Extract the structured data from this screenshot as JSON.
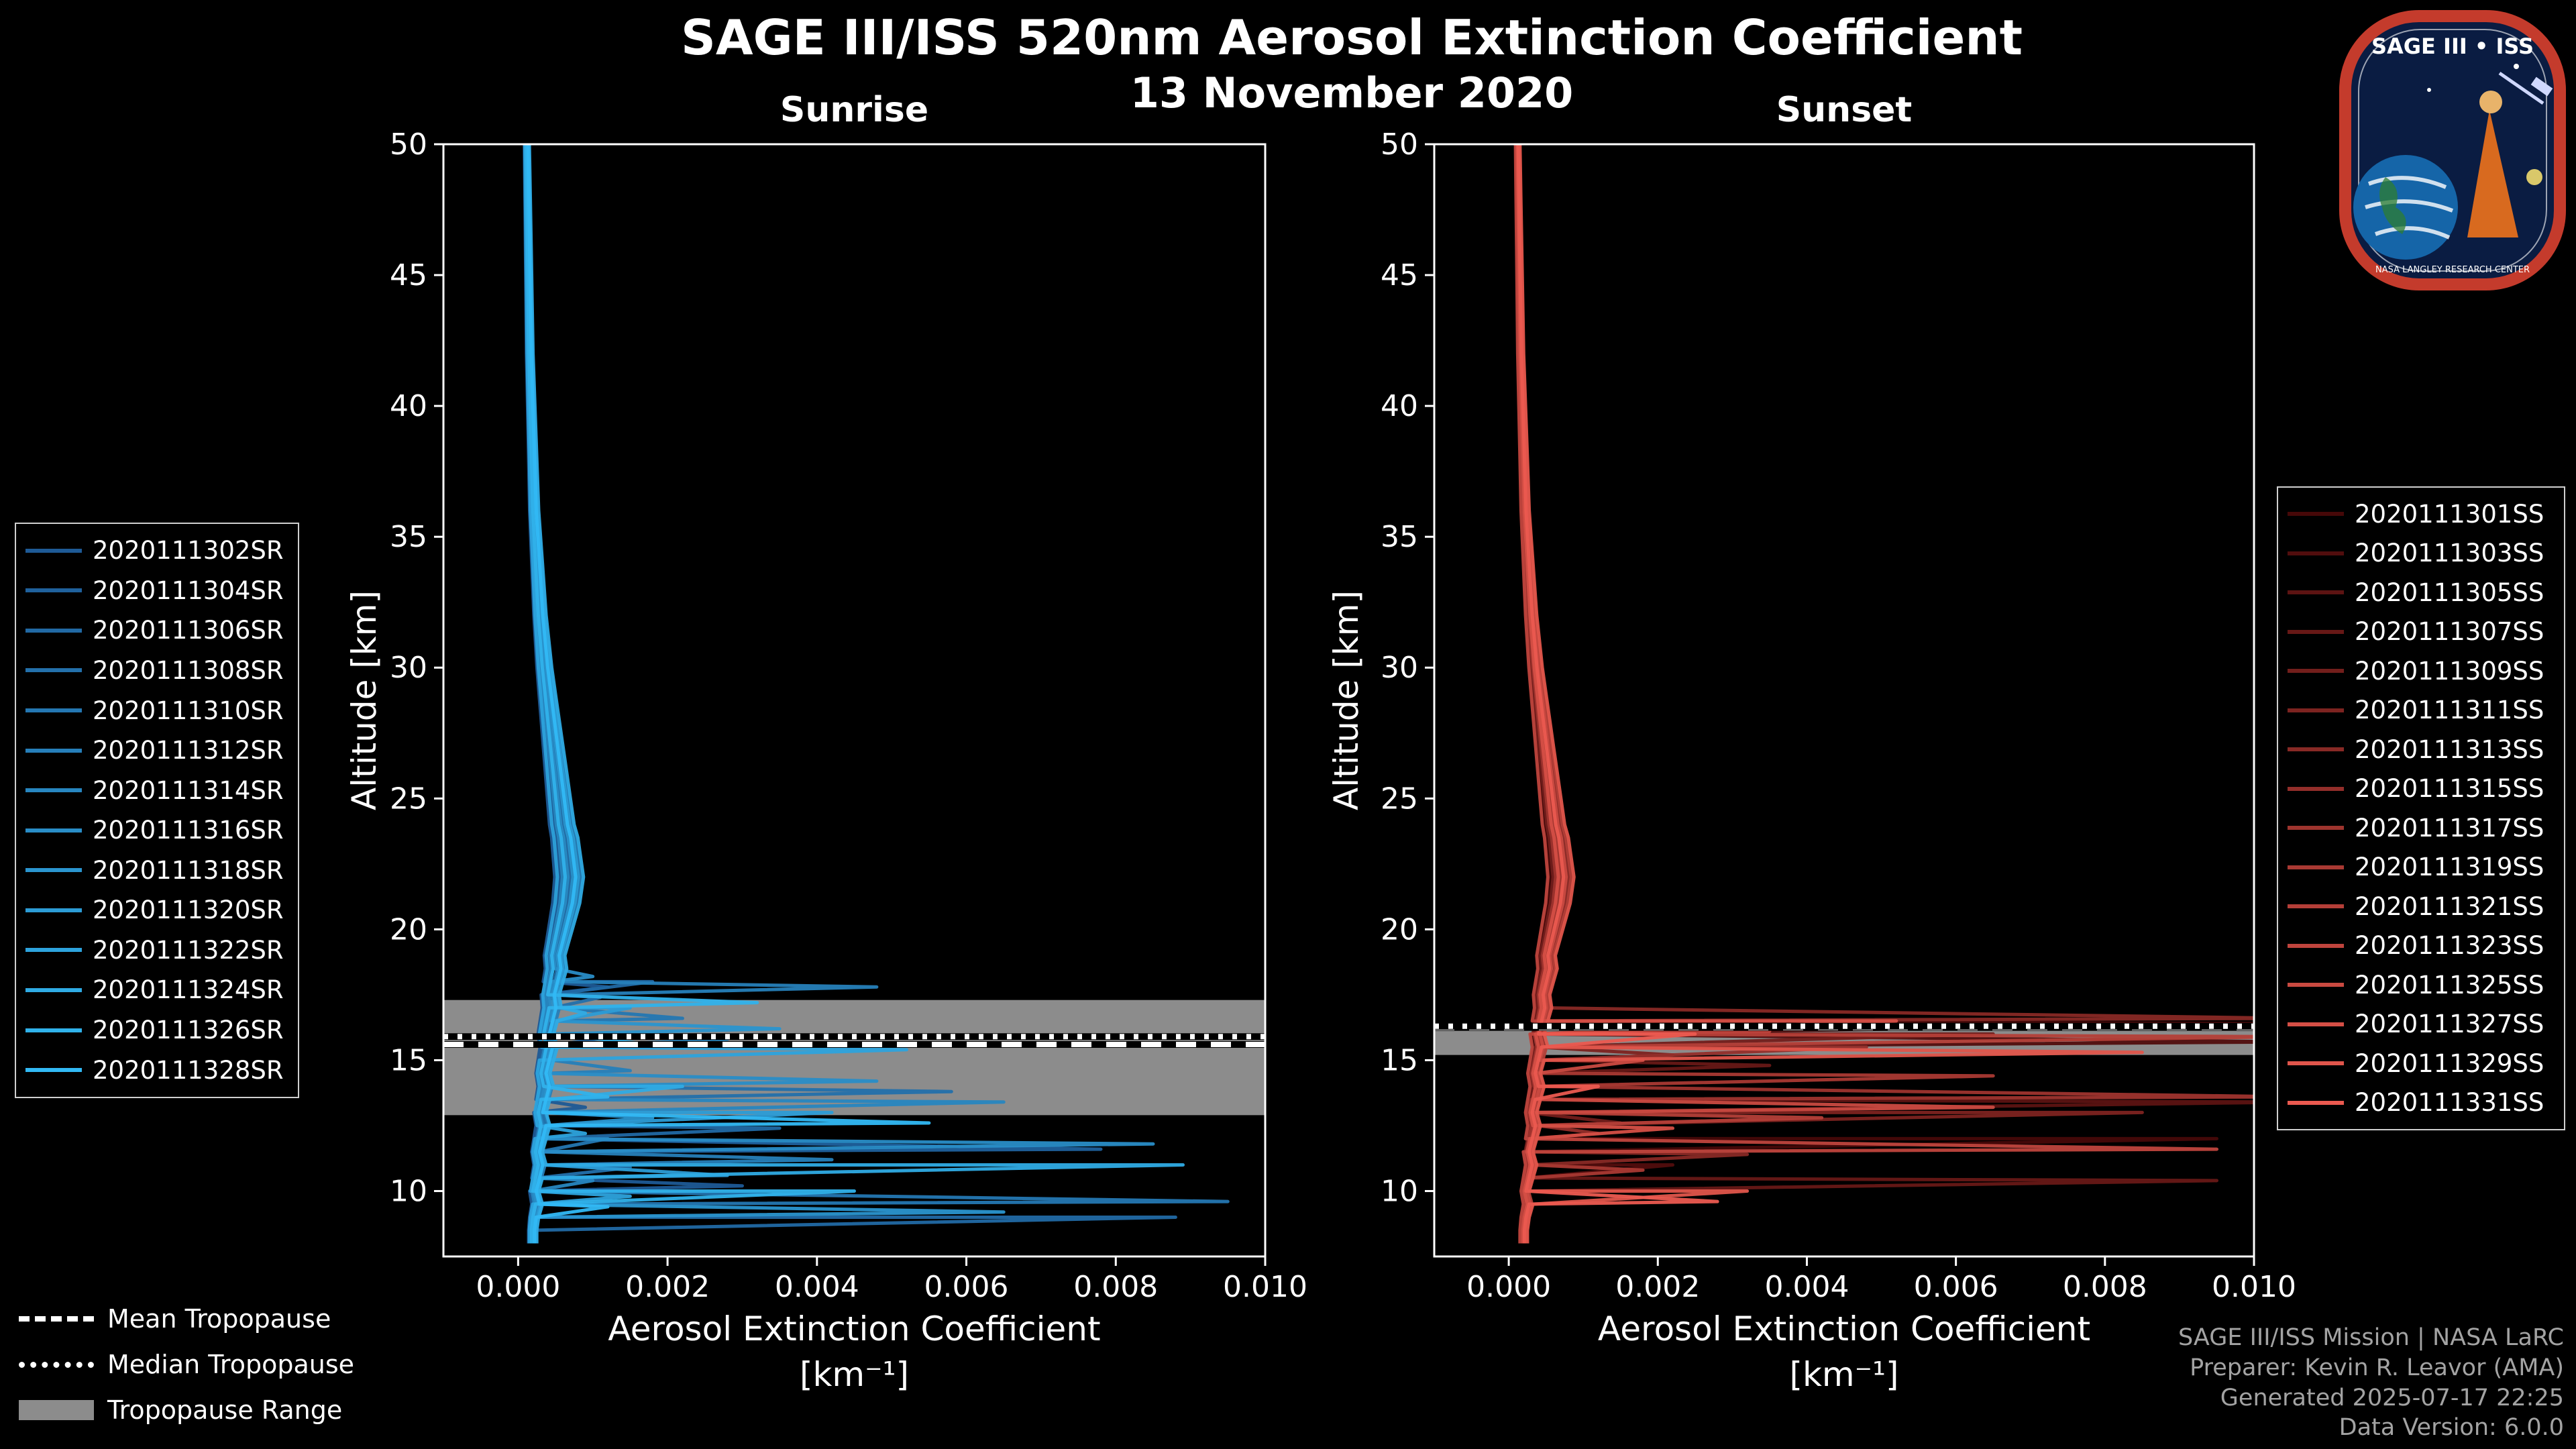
{
  "header": {
    "title": "SAGE III/ISS 520nm Aerosol Extinction Coefficient",
    "date": "13 November 2020"
  },
  "logo": {
    "title": "SAGE III • ISS",
    "ring_text": "NASA LANGLEY RESEARCH CENTER"
  },
  "tropopause_legend": {
    "mean": "Mean Tropopause",
    "median": "Median Tropopause",
    "range": "Tropopause Range"
  },
  "footer": {
    "line1": "SAGE III/ISS Mission | NASA LaRC",
    "line2": "Preparer: Kevin R. Leavor (AMA)",
    "line3": "Generated 2025-07-17 22:25",
    "line4": "Data Version: 6.0.0"
  },
  "chart_data": {
    "type": "line",
    "x_axis": {
      "label": "Aerosol Extinction Coefficient",
      "units": "[km⁻¹]",
      "ticks": [
        0.0,
        0.002,
        0.004,
        0.006,
        0.008,
        0.01
      ],
      "lim": [
        -0.001,
        0.01
      ]
    },
    "y_axis": {
      "label": "Altitude [km]",
      "ticks": [
        10,
        15,
        20,
        25,
        30,
        35,
        40,
        45,
        50
      ],
      "lim": [
        7.5,
        50
      ]
    },
    "colors": {
      "band": "#8c8c8c",
      "tropopause_line": "#ffffff",
      "axis": "#ffffff"
    },
    "base_profile": [
      [
        50,
        0.00012
      ],
      [
        48,
        0.00013
      ],
      [
        46,
        0.00014
      ],
      [
        44,
        0.00015
      ],
      [
        42,
        0.00016
      ],
      [
        40,
        0.00018
      ],
      [
        38,
        0.0002
      ],
      [
        36,
        0.00022
      ],
      [
        34,
        0.00026
      ],
      [
        32,
        0.0003
      ],
      [
        30,
        0.00036
      ],
      [
        29,
        0.0004
      ],
      [
        28,
        0.00044
      ],
      [
        27,
        0.00048
      ],
      [
        26,
        0.00052
      ],
      [
        25,
        0.00056
      ],
      [
        24,
        0.0006
      ],
      [
        23.5,
        0.00064
      ],
      [
        23,
        0.00066
      ],
      [
        22.5,
        0.00068
      ],
      [
        22,
        0.0007
      ],
      [
        21.5,
        0.00068
      ],
      [
        21,
        0.00066
      ],
      [
        20.5,
        0.00062
      ],
      [
        20,
        0.00058
      ],
      [
        19.5,
        0.00054
      ],
      [
        19,
        0.0005
      ],
      [
        18.5,
        0.00052
      ],
      [
        18,
        0.00048
      ],
      [
        17.5,
        0.00044
      ],
      [
        17,
        0.00046
      ],
      [
        16.5,
        0.00042
      ],
      [
        16,
        0.00038
      ],
      [
        15.5,
        0.00042
      ],
      [
        15,
        0.00038
      ],
      [
        14.5,
        0.00034
      ],
      [
        14,
        0.00038
      ],
      [
        13.5,
        0.00034
      ],
      [
        13,
        0.0003
      ],
      [
        12.5,
        0.00034
      ],
      [
        12,
        0.0003
      ],
      [
        11.5,
        0.00026
      ],
      [
        11,
        0.0003
      ],
      [
        10.5,
        0.00026
      ],
      [
        10,
        0.00022
      ],
      [
        9.5,
        0.00026
      ],
      [
        9,
        0.00022
      ],
      [
        8.5,
        0.0002
      ],
      [
        8,
        0.0002
      ]
    ],
    "panels": [
      {
        "key": "sunrise",
        "title": "Sunrise",
        "tropopause": {
          "mean": 15.6,
          "median": 15.9,
          "range": [
            12.9,
            17.3
          ]
        },
        "series": [
          {
            "name": "2020111302SR",
            "color": "#1e5a96",
            "scale": 0.7,
            "spikes": [
              [
                17.8,
                0.0012
              ],
              [
                13.2,
                0.0009
              ],
              [
                10.2,
                0.003
              ]
            ]
          },
          {
            "name": "2020111304SR",
            "color": "#1f619d",
            "scale": 0.8,
            "spikes": [
              [
                16.0,
                0.0015
              ],
              [
                11.6,
                0.0078
              ]
            ]
          },
          {
            "name": "2020111306SR",
            "color": "#2169a4",
            "scale": 0.9,
            "spikes": [
              [
                18.0,
                0.0018
              ],
              [
                12.4,
                0.0035
              ],
              [
                9.0,
                0.0088
              ]
            ]
          },
          {
            "name": "2020111308SR",
            "color": "#2370ab",
            "scale": 1.0,
            "spikes": [
              [
                17.4,
                0.0011
              ],
              [
                13.8,
                0.0058
              ],
              [
                10.9,
                0.0015
              ]
            ]
          },
          {
            "name": "2020111310SR",
            "color": "#2477b2",
            "scale": 1.1,
            "spikes": [
              [
                16.6,
                0.0022
              ],
              [
                12.0,
                0.0012
              ],
              [
                9.6,
                0.0095
              ]
            ]
          },
          {
            "name": "2020111312SR",
            "color": "#267fb9",
            "scale": 1.2,
            "spikes": [
              [
                17.8,
                0.0048
              ],
              [
                14.6,
                0.0015
              ],
              [
                11.2,
                0.0042
              ]
            ]
          },
          {
            "name": "2020111314SR",
            "color": "#2786c0",
            "scale": 0.85,
            "spikes": [
              [
                15.8,
                0.0028
              ],
              [
                13.4,
                0.0065
              ],
              [
                10.4,
                0.001
              ]
            ]
          },
          {
            "name": "2020111316SR",
            "color": "#298dc7",
            "scale": 0.95,
            "spikes": [
              [
                18.2,
                0.001
              ],
              [
                14.2,
                0.0048
              ],
              [
                11.8,
                0.0085
              ]
            ]
          },
          {
            "name": "2020111318SR",
            "color": "#2a95cf",
            "scale": 1.05,
            "spikes": [
              [
                16.2,
                0.0035
              ],
              [
                12.8,
                0.0018
              ],
              [
                9.2,
                0.0065
              ]
            ]
          },
          {
            "name": "2020111320SR",
            "color": "#2c9cd6",
            "scale": 1.15,
            "spikes": [
              [
                17.0,
                0.0015
              ],
              [
                13.0,
                0.0042
              ],
              [
                10.6,
                0.0028
              ]
            ]
          },
          {
            "name": "2020111322SR",
            "color": "#2da3dd",
            "scale": 0.75,
            "spikes": [
              [
                15.4,
                0.0052
              ],
              [
                12.2,
                0.0009
              ],
              [
                9.8,
                0.0015
              ]
            ]
          },
          {
            "name": "2020111324SR",
            "color": "#2fabe4",
            "scale": 1.25,
            "spikes": [
              [
                16.8,
                0.0009
              ],
              [
                14.0,
                0.0022
              ],
              [
                11.0,
                0.0089
              ]
            ]
          },
          {
            "name": "2020111326SR",
            "color": "#30b2eb",
            "scale": 0.9,
            "spikes": [
              [
                17.2,
                0.0032
              ],
              [
                13.6,
                0.0012
              ],
              [
                10.0,
                0.0045
              ]
            ]
          },
          {
            "name": "2020111328SR",
            "color": "#32b9f5",
            "scale": 1.1,
            "spikes": [
              [
                15.6,
                0.0018
              ],
              [
                12.6,
                0.0055
              ],
              [
                9.4,
                0.0012
              ]
            ]
          }
        ]
      },
      {
        "key": "sunset",
        "title": "Sunset",
        "tropopause": {
          "mean": 16.25,
          "median": 16.3,
          "range": [
            15.2,
            16.4
          ]
        },
        "series": [
          {
            "name": "2020111301SS",
            "color": "#460808",
            "scale": 0.8,
            "spikes": [
              [
                16.4,
                0.0105
              ],
              [
                12.0,
                0.0095
              ]
            ]
          },
          {
            "name": "2020111303SS",
            "color": "#510d0d",
            "scale": 0.9,
            "spikes": [
              [
                15.7,
                0.0105
              ],
              [
                11.0,
                0.0022
              ]
            ]
          },
          {
            "name": "2020111305SS",
            "color": "#5c1312",
            "scale": 1.0,
            "spikes": [
              [
                16.2,
                0.0045
              ],
              [
                13.4,
                0.0105
              ]
            ]
          },
          {
            "name": "2020111307SS",
            "color": "#671816",
            "scale": 1.1,
            "spikes": [
              [
                14.8,
                0.0035
              ],
              [
                10.4,
                0.0095
              ]
            ]
          },
          {
            "name": "2020111309SS",
            "color": "#721e1b",
            "scale": 0.85,
            "spikes": [
              [
                16.0,
                0.0065
              ],
              [
                12.6,
                0.0015
              ]
            ]
          },
          {
            "name": "2020111311SS",
            "color": "#7d2320",
            "scale": 0.95,
            "spikes": [
              [
                15.2,
                0.0022
              ],
              [
                13.0,
                0.0085
              ]
            ]
          },
          {
            "name": "2020111313SS",
            "color": "#882925",
            "scale": 1.05,
            "spikes": [
              [
                16.6,
                0.0105
              ],
              [
                11.4,
                0.0032
              ]
            ]
          },
          {
            "name": "2020111315SS",
            "color": "#932e2a",
            "scale": 1.15,
            "spikes": [
              [
                15.5,
                0.0048
              ],
              [
                12.2,
                0.0012
              ]
            ]
          },
          {
            "name": "2020111317SS",
            "color": "#9e342e",
            "scale": 0.9,
            "spikes": [
              [
                16.3,
                0.0028
              ],
              [
                13.6,
                0.0105
              ]
            ]
          },
          {
            "name": "2020111319SS",
            "color": "#a93933",
            "scale": 1.0,
            "spikes": [
              [
                14.4,
                0.0065
              ],
              [
                10.8,
                0.0018
              ]
            ]
          },
          {
            "name": "2020111321SS",
            "color": "#b43f38",
            "scale": 1.2,
            "spikes": [
              [
                15.9,
                0.0105
              ],
              [
                12.8,
                0.0042
              ]
            ]
          },
          {
            "name": "2020111323SS",
            "color": "#bf443d",
            "scale": 0.75,
            "spikes": [
              [
                16.1,
                0.0035
              ],
              [
                11.6,
                0.0095
              ]
            ]
          },
          {
            "name": "2020111325SS",
            "color": "#ca4a41",
            "scale": 1.1,
            "spikes": [
              [
                15.0,
                0.0018
              ],
              [
                13.2,
                0.0065
              ]
            ]
          },
          {
            "name": "2020111327SS",
            "color": "#d54f46",
            "scale": 0.95,
            "spikes": [
              [
                16.5,
                0.0052
              ],
              [
                12.4,
                0.0022
              ]
            ]
          },
          {
            "name": "2020111329SS",
            "color": "#e0554b",
            "scale": 1.25,
            "spikes": [
              [
                15.3,
                0.0085
              ],
              [
                10.0,
                0.0032
              ]
            ]
          },
          {
            "name": "2020111331SS",
            "color": "#eb5a50",
            "scale": 1.05,
            "spikes": [
              [
                16.0,
                0.0025
              ],
              [
                14.0,
                0.0012
              ],
              [
                9.6,
                0.0028
              ]
            ]
          }
        ]
      }
    ]
  }
}
